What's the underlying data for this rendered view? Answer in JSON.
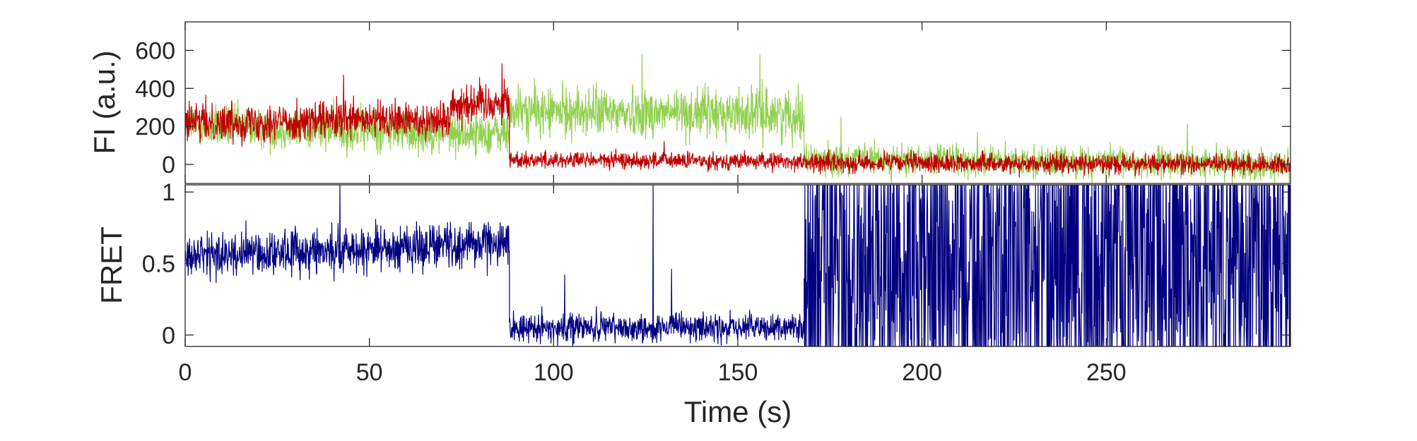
{
  "chart_data": [
    {
      "type": "line",
      "panel": "top",
      "ylabel": "FI (a.u.)",
      "xlim": [
        0,
        300
      ],
      "ylim": [
        -100,
        750
      ],
      "yticks": [
        0,
        200,
        400,
        600
      ],
      "ytick_labels": [
        "0",
        "200",
        "400",
        "600"
      ],
      "show_xtick_labels": false,
      "segments_description": "donor/acceptor intensity levels per time segment",
      "series": [
        {
          "color": "#92D050",
          "segments": [
            {
              "x0": 0,
              "x1": 88,
              "y0": 200,
              "y1": 160,
              "noise": 55
            },
            {
              "x0": 88,
              "x1": 168,
              "y0": 280,
              "y1": 265,
              "noise": 65
            },
            {
              "x0": 168,
              "x1": 300,
              "y0": 25,
              "y1": 0,
              "noise": 40
            }
          ],
          "spikes": [
            {
              "x": 124,
              "y": 580
            },
            {
              "x": 156,
              "y": 580
            },
            {
              "x": 178,
              "y": 250
            },
            {
              "x": 215,
              "y": 170
            },
            {
              "x": 272,
              "y": 210
            }
          ]
        },
        {
          "color": "#C00000",
          "segments": [
            {
              "x0": 0,
              "x1": 72,
              "y0": 220,
              "y1": 235,
              "noise": 50
            },
            {
              "x0": 72,
              "x1": 88,
              "y0": 320,
              "y1": 330,
              "noise": 55
            },
            {
              "x0": 88,
              "x1": 168,
              "y0": 25,
              "y1": 15,
              "noise": 22
            },
            {
              "x0": 168,
              "x1": 300,
              "y0": 10,
              "y1": 0,
              "noise": 25
            }
          ],
          "spikes": [
            {
              "x": 43,
              "y": 470
            },
            {
              "x": 86,
              "y": 530
            },
            {
              "x": 130,
              "y": 120
            }
          ]
        }
      ]
    },
    {
      "type": "line",
      "panel": "bottom",
      "xlabel": "Time (s)",
      "ylabel": "FRET",
      "xlim": [
        0,
        300
      ],
      "ylim": [
        -0.08,
        1.05
      ],
      "xticks": [
        0,
        50,
        100,
        150,
        200,
        250
      ],
      "xtick_labels": [
        "0",
        "50",
        "100",
        "150",
        "200",
        "250"
      ],
      "yticks": [
        0,
        0.5,
        1
      ],
      "ytick_labels": [
        "0",
        "0.5",
        "1"
      ],
      "series": [
        {
          "color": "#000080",
          "segments": [
            {
              "x0": 0,
              "x1": 88,
              "y0": 0.55,
              "y1": 0.65,
              "noise": 0.08
            },
            {
              "x0": 88,
              "x1": 168,
              "y0": 0.05,
              "y1": 0.05,
              "noise": 0.05
            },
            {
              "x0": 168,
              "x1": 300,
              "y0": 0.3,
              "y1": 0.3,
              "noise": 0.5,
              "mode": "random"
            }
          ],
          "spikes": [
            {
              "x": 42,
              "y": 1.05
            },
            {
              "x": 103,
              "y": 0.42
            },
            {
              "x": 127,
              "y": 1.05
            },
            {
              "x": 132,
              "y": 0.46
            }
          ]
        }
      ]
    }
  ]
}
